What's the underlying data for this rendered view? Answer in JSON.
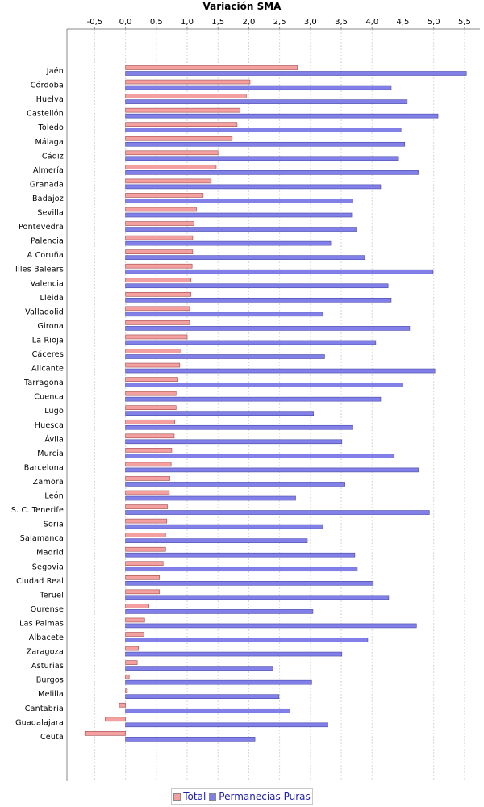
{
  "chart_data": {
    "type": "bar",
    "orientation": "horizontal",
    "title": "Variación SMA",
    "xlabel": "",
    "ylabel": "",
    "xlim": [
      -0.95,
      5.75
    ],
    "x_ticks": [
      -0.5,
      0.0,
      0.5,
      1.0,
      1.5,
      2.0,
      2.5,
      3.0,
      3.5,
      4.0,
      4.5,
      5.0,
      5.5
    ],
    "x_tick_labels": [
      "-0,5",
      "0,0",
      "0,5",
      "1,0",
      "1,5",
      "2,0",
      "2,5",
      "3,0",
      "3,5",
      "4,0",
      "4,5",
      "5,0",
      "5,5"
    ],
    "grid": true,
    "legend_position": "bottom",
    "categories": [
      "Jaén",
      "Córdoba",
      "Huelva",
      "Castellón",
      "Toledo",
      "Málaga",
      "Cádiz",
      "Almería",
      "Granada",
      "Badajoz",
      "Sevilla",
      "Pontevedra",
      "Palencia",
      "A Coruña",
      "Illes Balears",
      "Valencia",
      "Lleida",
      "Valladolid",
      "Girona",
      "La Rioja",
      "Cáceres",
      "Alicante",
      "Tarragona",
      "Cuenca",
      "Lugo",
      "Huesca",
      "Ávila",
      "Murcia",
      "Barcelona",
      "Zamora",
      "León",
      "S. C. Tenerife",
      "Soria",
      "Salamanca",
      "Madrid",
      "Segovia",
      "Ciudad Real",
      "Teruel",
      "Ourense",
      "Las Palmas",
      "Albacete",
      "Zaragoza",
      "Asturias",
      "Burgos",
      "Melilla",
      "Cantabria",
      "Guadalajara",
      "Ceuta"
    ],
    "series": [
      {
        "name": "Total",
        "color": "#f4a0a0",
        "values": [
          2.79,
          2.02,
          1.96,
          1.86,
          1.81,
          1.73,
          1.5,
          1.47,
          1.39,
          1.26,
          1.15,
          1.11,
          1.09,
          1.09,
          1.08,
          1.06,
          1.06,
          1.04,
          1.04,
          1.0,
          0.9,
          0.88,
          0.85,
          0.82,
          0.82,
          0.8,
          0.79,
          0.75,
          0.74,
          0.72,
          0.71,
          0.68,
          0.67,
          0.65,
          0.65,
          0.61,
          0.55,
          0.55,
          0.38,
          0.31,
          0.3,
          0.21,
          0.19,
          0.06,
          0.03,
          -0.1,
          -0.33,
          -0.66
        ]
      },
      {
        "name": "Permanecias Puras",
        "color": "#8080e8",
        "values": [
          5.53,
          4.31,
          4.57,
          5.07,
          4.47,
          4.53,
          4.43,
          4.75,
          4.14,
          3.69,
          3.67,
          3.75,
          3.33,
          3.88,
          4.99,
          4.26,
          4.31,
          3.2,
          4.61,
          4.06,
          3.23,
          5.02,
          4.5,
          4.14,
          3.05,
          3.69,
          3.51,
          4.36,
          4.75,
          3.56,
          2.76,
          4.93,
          3.2,
          2.95,
          3.72,
          3.76,
          4.02,
          4.27,
          3.04,
          4.72,
          3.93,
          3.51,
          2.39,
          3.02,
          2.49,
          2.67,
          3.28,
          2.1
        ]
      }
    ]
  }
}
